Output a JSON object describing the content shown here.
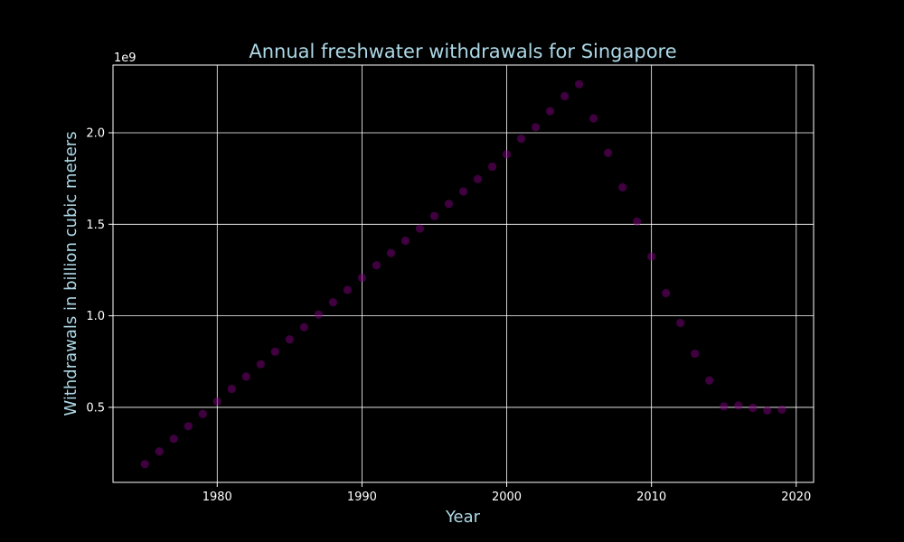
{
  "chart_data": {
    "type": "scatter",
    "title": "Annual freshwater withdrawals for Singapore",
    "xlabel": "Year",
    "ylabel": "Withdrawals in billion cubic meters",
    "y_offset_label": "1e9",
    "xlim": [
      1972.8,
      2021.2
    ],
    "ylim": [
      90000000.0,
      2370000000.0
    ],
    "x_ticks": [
      1980,
      1990,
      2000,
      2010,
      2020
    ],
    "x_tick_labels": [
      "1980",
      "1990",
      "2000",
      "2010",
      "2020"
    ],
    "y_ticks": [
      500000000.0,
      1000000000.0,
      1500000000.0,
      2000000000.0
    ],
    "y_tick_labels": [
      "0.5",
      "1.0",
      "1.5",
      "2.0"
    ],
    "grid": true,
    "colors": {
      "background": "#000000",
      "axes": "#ffffff",
      "title": "#add8e6",
      "tick_labels": "#ffffff",
      "points": "#800080"
    },
    "x": [
      1975,
      1976,
      1977,
      1978,
      1979,
      1980,
      1981,
      1982,
      1983,
      1984,
      1985,
      1986,
      1987,
      1988,
      1989,
      1990,
      1991,
      1992,
      1993,
      1994,
      1995,
      1996,
      1997,
      1998,
      1999,
      2000,
      2001,
      2002,
      2003,
      2004,
      2005,
      2006,
      2007,
      2008,
      2009,
      2010,
      2011,
      2012,
      2013,
      2014,
      2015,
      2016,
      2017,
      2018,
      2019
    ],
    "y": [
      190000000,
      259000000,
      328000000,
      397000000,
      464000000,
      532000000,
      601000000,
      668000000,
      735000000,
      804000000,
      871000000,
      938000000,
      1007000000,
      1074000000,
      1142000000,
      1208000000,
      1276000000,
      1343000000,
      1410000000,
      1477000000,
      1545000000,
      1612000000,
      1679000000,
      1747000000,
      1815000000,
      1882000000,
      1967000000,
      2030000000,
      2118000000,
      2200000000,
      2265000000,
      2079000000,
      1890000000,
      1702000000,
      1515000000,
      1324000000,
      1124000000,
      961000000,
      793000000,
      647000000,
      505000000,
      510000000,
      497000000,
      483000000,
      488000000
    ]
  }
}
